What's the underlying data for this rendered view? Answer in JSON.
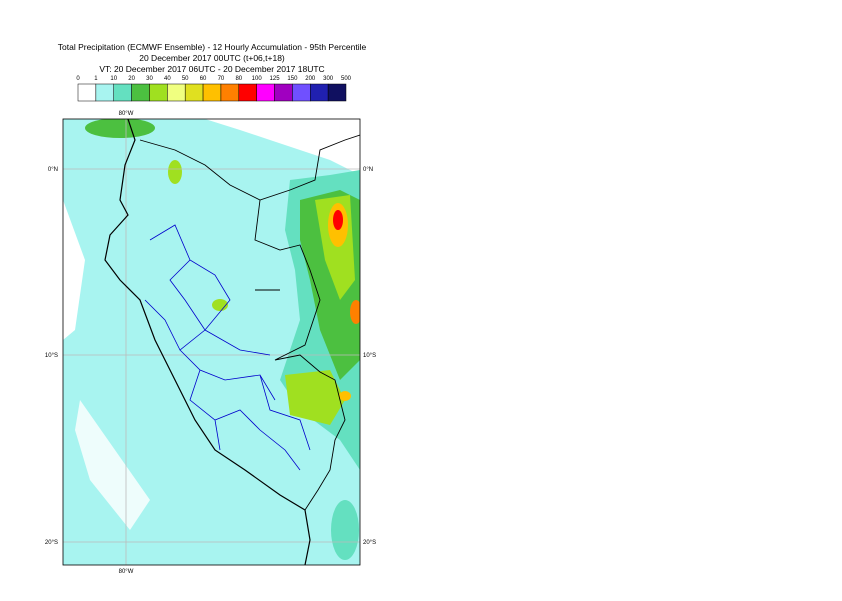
{
  "title": {
    "lines": [
      "Total Precipitation (ECMWF Ensemble) - 12 Hourly Accumulation - 95th Percentile",
      "20 December 2017 00UTC (t+06,t+18)",
      "VT: 20 December 2017 06UTC - 20 December 2017 18UTC"
    ]
  },
  "legend": {
    "labels": [
      "0",
      "1",
      "10",
      "20",
      "30",
      "40",
      "50",
      "60",
      "70",
      "80",
      "100",
      "125",
      "150",
      "200",
      "300",
      "500"
    ],
    "colors": [
      "#ffffff",
      "#a8f4f0",
      "#64e0c0",
      "#4cc040",
      "#a0e020",
      "#f0ff80",
      "#e0e020",
      "#ffc000",
      "#ff8000",
      "#ff0000",
      "#ff00ff",
      "#a000c0",
      "#7050ff",
      "#2020b0",
      "#101060"
    ]
  },
  "map": {
    "lat_labels": [
      "0°N",
      "10°S",
      "20°S"
    ],
    "lon_labels": [
      "80°W"
    ]
  }
}
